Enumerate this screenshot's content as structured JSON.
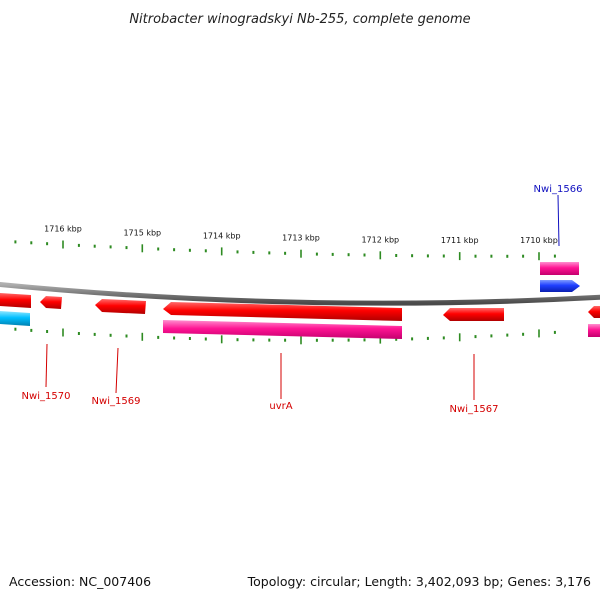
{
  "title": "Nitrobacter winogradskyi Nb-255, complete genome",
  "footer": {
    "accession": "Accession: NC_007406",
    "summary": "Topology: circular; Length: 3,402,093 bp; Genes: 3,176"
  },
  "colors": {
    "background": "#ffffff",
    "backbone": "#808080",
    "tick": "#2e8b22",
    "gene_forward": "#ff0000",
    "gene_reverse": "#ff1493",
    "pseudo_forward": "#1f3fff",
    "pseudo_reverse": "#00bfff",
    "label_red": "#d40000",
    "label_blue": "#1010c0"
  },
  "scale": {
    "unit": "kbp",
    "ticks": [
      {
        "kbp": 1716,
        "label": "1716 kbp"
      },
      {
        "kbp": 1715,
        "label": "1715 kbp"
      },
      {
        "kbp": 1714,
        "label": "1714 kbp"
      },
      {
        "kbp": 1713,
        "label": "1713 kbp"
      },
      {
        "kbp": 1712,
        "label": "1712 kbp"
      },
      {
        "kbp": 1711,
        "label": "1711 kbp"
      },
      {
        "kbp": 1710,
        "label": "1710 kbp"
      }
    ]
  },
  "labels": [
    {
      "text": "Nwi_1570",
      "color": "red"
    },
    {
      "text": "Nwi_1569",
      "color": "red"
    },
    {
      "text": "uvrA",
      "color": "red"
    },
    {
      "text": "Nwi_1567",
      "color": "red"
    },
    {
      "text": "Nwi_1566",
      "color": "blue"
    }
  ]
}
